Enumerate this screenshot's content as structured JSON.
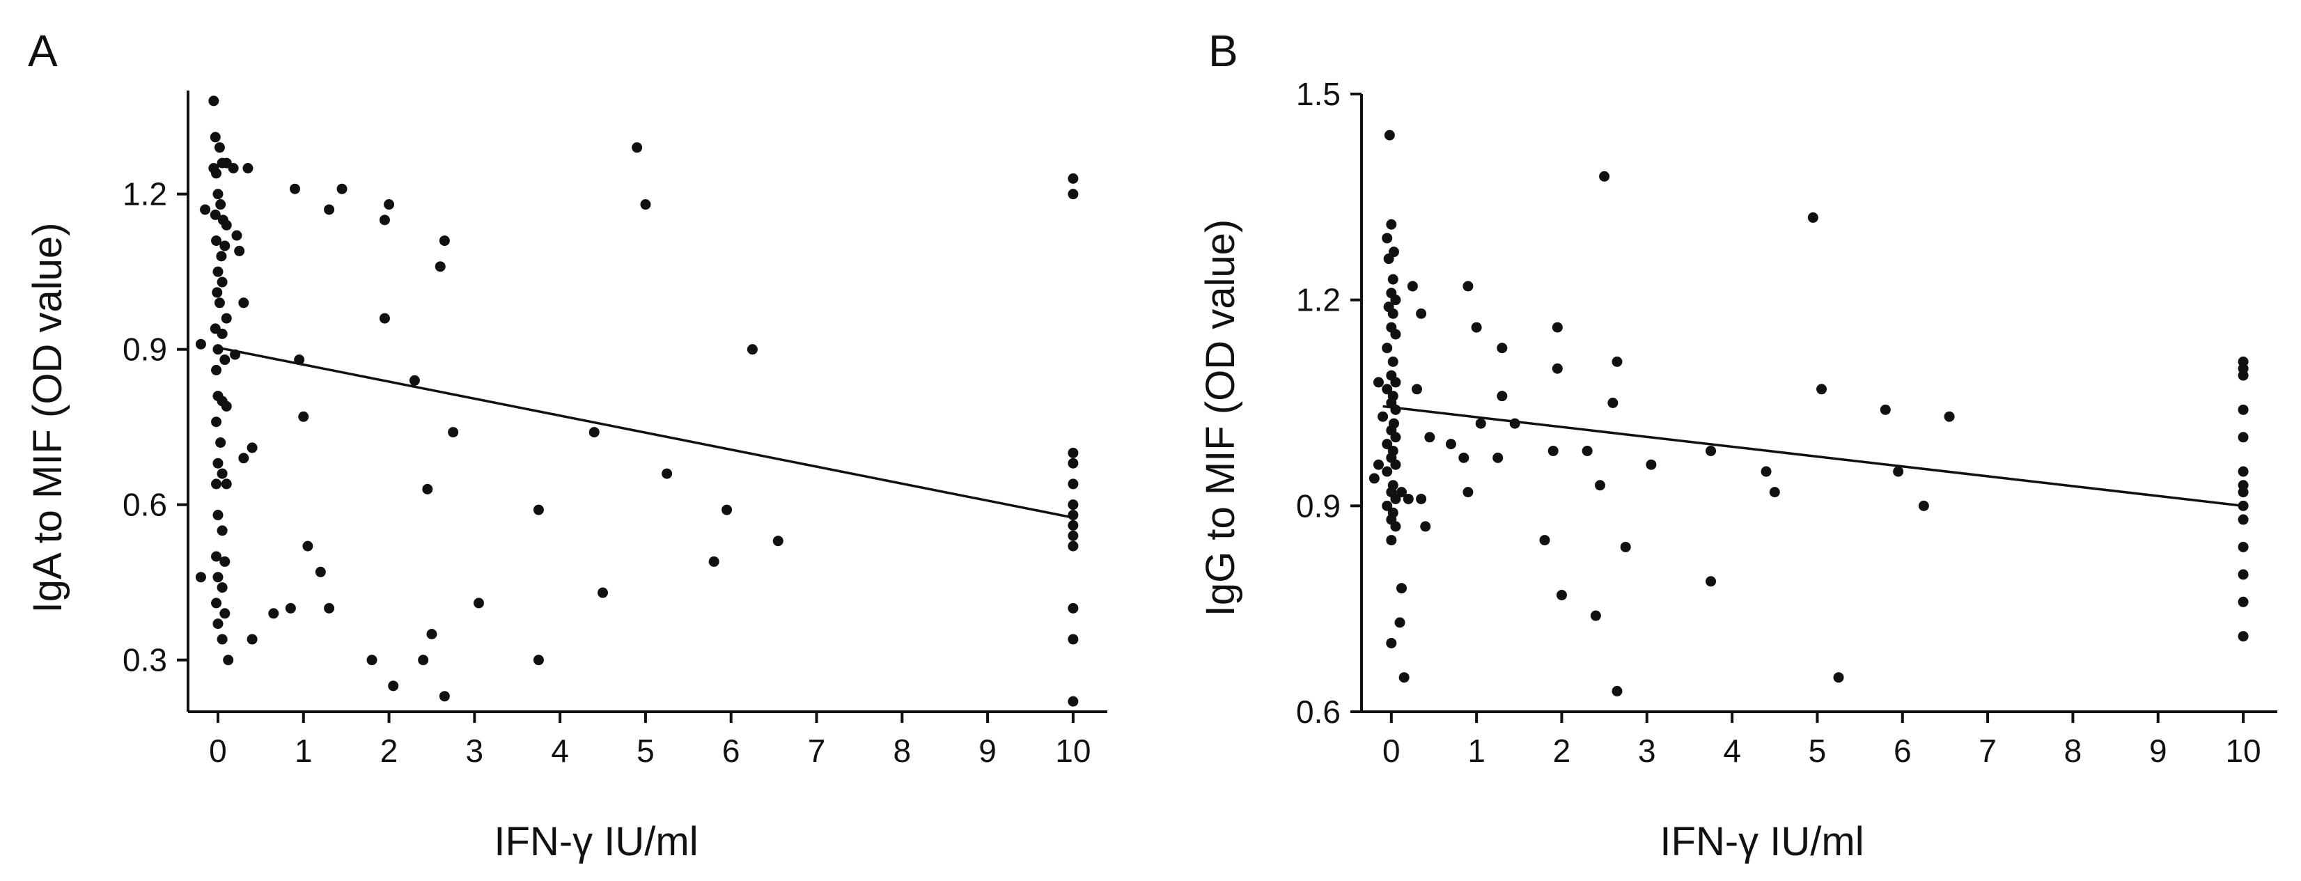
{
  "figure": {
    "colors": {
      "ink": "#111111",
      "background": "#ffffff"
    }
  },
  "chart_data": [
    {
      "type": "scatter",
      "panel": "A",
      "title": "",
      "xlabel": "IFN-γ IU/ml",
      "ylabel": "IgA to MIF (OD value)",
      "xlim": [
        -0.35,
        10.4
      ],
      "ylim": [
        0.2,
        1.4
      ],
      "xticks": [
        0,
        1,
        2,
        3,
        4,
        5,
        6,
        7,
        8,
        9,
        10
      ],
      "xtick_labels": [
        "0",
        "1",
        "2",
        "3",
        "4",
        "5",
        "6",
        "7",
        "8",
        "9",
        "10"
      ],
      "yticks": [
        0.3,
        0.6,
        0.9,
        1.2
      ],
      "ytick_labels": [
        "0.3",
        "0.6",
        "0.9",
        "1.2"
      ],
      "trend_line": {
        "x": [
          -0.05,
          10
        ],
        "y": [
          0.905,
          0.575
        ]
      },
      "points": [
        [
          -0.2,
          0.91
        ],
        [
          -0.15,
          1.17
        ],
        [
          -0.05,
          1.38
        ],
        [
          -0.03,
          1.31
        ],
        [
          0.02,
          1.29
        ],
        [
          -0.05,
          1.25
        ],
        [
          0.05,
          1.26
        ],
        [
          0.1,
          1.26
        ],
        [
          -0.02,
          1.24
        ],
        [
          0.0,
          1.2
        ],
        [
          0.03,
          1.18
        ],
        [
          -0.03,
          1.16
        ],
        [
          0.06,
          1.15
        ],
        [
          0.1,
          1.14
        ],
        [
          -0.02,
          1.11
        ],
        [
          0.04,
          1.08
        ],
        [
          0.08,
          1.1
        ],
        [
          0.0,
          1.05
        ],
        [
          0.05,
          1.03
        ],
        [
          -0.01,
          1.01
        ],
        [
          0.02,
          0.99
        ],
        [
          0.1,
          0.96
        ],
        [
          -0.03,
          0.94
        ],
        [
          0.05,
          0.93
        ],
        [
          0.0,
          0.9
        ],
        [
          0.08,
          0.88
        ],
        [
          -0.02,
          0.86
        ],
        [
          0.0,
          0.81
        ],
        [
          0.05,
          0.8
        ],
        [
          0.1,
          0.79
        ],
        [
          -0.02,
          0.76
        ],
        [
          0.03,
          0.72
        ],
        [
          0.0,
          0.68
        ],
        [
          0.05,
          0.66
        ],
        [
          -0.02,
          0.64
        ],
        [
          0.1,
          0.64
        ],
        [
          0.0,
          0.58
        ],
        [
          0.05,
          0.55
        ],
        [
          -0.02,
          0.5
        ],
        [
          0.08,
          0.49
        ],
        [
          0.0,
          0.46
        ],
        [
          0.05,
          0.44
        ],
        [
          -0.02,
          0.41
        ],
        [
          0.08,
          0.39
        ],
        [
          -0.2,
          0.46
        ],
        [
          0.0,
          0.37
        ],
        [
          0.05,
          0.34
        ],
        [
          0.12,
          0.3
        ],
        [
          0.18,
          1.25
        ],
        [
          0.22,
          1.12
        ],
        [
          0.25,
          1.09
        ],
        [
          0.3,
          0.99
        ],
        [
          0.35,
          1.25
        ],
        [
          0.2,
          0.89
        ],
        [
          0.3,
          0.69
        ],
        [
          0.4,
          0.71
        ],
        [
          0.4,
          0.34
        ],
        [
          0.65,
          0.39
        ],
        [
          0.85,
          0.4
        ],
        [
          0.95,
          0.88
        ],
        [
          1.0,
          0.77
        ],
        [
          1.05,
          0.52
        ],
        [
          1.2,
          0.47
        ],
        [
          1.3,
          0.4
        ],
        [
          0.9,
          1.21
        ],
        [
          1.3,
          1.17
        ],
        [
          1.45,
          1.21
        ],
        [
          1.8,
          0.3
        ],
        [
          1.95,
          1.15
        ],
        [
          1.95,
          0.96
        ],
        [
          2.0,
          1.18
        ],
        [
          2.05,
          0.25
        ],
        [
          2.3,
          0.84
        ],
        [
          2.4,
          0.3
        ],
        [
          2.45,
          0.63
        ],
        [
          2.5,
          0.35
        ],
        [
          2.6,
          1.06
        ],
        [
          2.65,
          1.11
        ],
        [
          2.65,
          0.23
        ],
        [
          2.75,
          0.74
        ],
        [
          3.05,
          0.41
        ],
        [
          3.75,
          0.59
        ],
        [
          3.75,
          0.3
        ],
        [
          4.4,
          0.74
        ],
        [
          4.5,
          0.43
        ],
        [
          4.9,
          1.29
        ],
        [
          5.0,
          1.18
        ],
        [
          5.25,
          0.66
        ],
        [
          5.8,
          0.49
        ],
        [
          5.95,
          0.59
        ],
        [
          6.25,
          0.9
        ],
        [
          6.55,
          0.53
        ],
        [
          10.0,
          1.23
        ],
        [
          10.0,
          1.2
        ],
        [
          10.0,
          0.7
        ],
        [
          10.0,
          0.68
        ],
        [
          10.0,
          0.64
        ],
        [
          10.0,
          0.6
        ],
        [
          10.0,
          0.58
        ],
        [
          10.0,
          0.56
        ],
        [
          10.0,
          0.54
        ],
        [
          10.0,
          0.52
        ],
        [
          10.0,
          0.4
        ],
        [
          10.0,
          0.34
        ],
        [
          10.0,
          0.22
        ]
      ]
    },
    {
      "type": "scatter",
      "panel": "B",
      "title": "",
      "xlabel": "IFN-γ IU/ml",
      "ylabel": "IgG to MIF (OD value)",
      "xlim": [
        -0.35,
        10.4
      ],
      "ylim": [
        0.6,
        1.5
      ],
      "xticks": [
        0,
        1,
        2,
        3,
        4,
        5,
        6,
        7,
        8,
        9,
        10
      ],
      "xtick_labels": [
        "0",
        "1",
        "2",
        "3",
        "4",
        "5",
        "6",
        "7",
        "8",
        "9",
        "10"
      ],
      "yticks": [
        0.6,
        0.9,
        1.2,
        1.5
      ],
      "ytick_labels": [
        "0.6",
        "0.9",
        "1.2",
        "1.5"
      ],
      "trend_line": {
        "x": [
          -0.1,
          10
        ],
        "y": [
          1.045,
          0.9
        ]
      },
      "points": [
        [
          -0.02,
          1.44
        ],
        [
          -0.05,
          1.29
        ],
        [
          0.0,
          1.31
        ],
        [
          0.03,
          1.27
        ],
        [
          -0.03,
          1.26
        ],
        [
          0.02,
          1.23
        ],
        [
          0.0,
          1.21
        ],
        [
          0.05,
          1.2
        ],
        [
          -0.03,
          1.19
        ],
        [
          0.02,
          1.18
        ],
        [
          0.0,
          1.16
        ],
        [
          0.05,
          1.15
        ],
        [
          -0.05,
          1.13
        ],
        [
          0.02,
          1.11
        ],
        [
          0.0,
          1.09
        ],
        [
          0.05,
          1.08
        ],
        [
          -0.05,
          1.07
        ],
        [
          0.02,
          1.06
        ],
        [
          0.0,
          1.05
        ],
        [
          0.05,
          1.04
        ],
        [
          -0.15,
          1.08
        ],
        [
          -0.1,
          1.03
        ],
        [
          0.03,
          1.02
        ],
        [
          0.0,
          1.01
        ],
        [
          0.05,
          1.0
        ],
        [
          -0.05,
          0.99
        ],
        [
          0.02,
          0.98
        ],
        [
          0.0,
          0.97
        ],
        [
          0.05,
          0.96
        ],
        [
          -0.05,
          0.95
        ],
        [
          0.02,
          0.93
        ],
        [
          0.0,
          0.92
        ],
        [
          0.05,
          0.91
        ],
        [
          -0.05,
          0.9
        ],
        [
          0.02,
          0.89
        ],
        [
          0.0,
          0.88
        ],
        [
          0.05,
          0.87
        ],
        [
          0.0,
          0.85
        ],
        [
          -0.2,
          0.94
        ],
        [
          -0.15,
          0.96
        ],
        [
          0.0,
          0.7
        ],
        [
          0.1,
          0.73
        ],
        [
          0.12,
          0.78
        ],
        [
          0.15,
          0.65
        ],
        [
          0.12,
          0.92
        ],
        [
          0.2,
          0.91
        ],
        [
          0.25,
          1.22
        ],
        [
          0.3,
          1.07
        ],
        [
          0.35,
          1.18
        ],
        [
          0.35,
          0.91
        ],
        [
          0.4,
          0.87
        ],
        [
          0.45,
          1.0
        ],
        [
          0.7,
          0.99
        ],
        [
          0.85,
          0.97
        ],
        [
          0.9,
          1.22
        ],
        [
          0.9,
          0.92
        ],
        [
          1.0,
          1.16
        ],
        [
          1.05,
          1.02
        ],
        [
          1.25,
          0.97
        ],
        [
          1.3,
          1.13
        ],
        [
          1.3,
          1.06
        ],
        [
          1.45,
          1.02
        ],
        [
          1.8,
          0.85
        ],
        [
          1.9,
          0.98
        ],
        [
          1.95,
          1.16
        ],
        [
          1.95,
          1.1
        ],
        [
          2.0,
          0.77
        ],
        [
          2.3,
          0.98
        ],
        [
          2.4,
          0.74
        ],
        [
          2.45,
          0.93
        ],
        [
          2.5,
          1.38
        ],
        [
          2.6,
          1.05
        ],
        [
          2.65,
          1.11
        ],
        [
          2.65,
          0.63
        ],
        [
          2.75,
          0.84
        ],
        [
          3.05,
          0.96
        ],
        [
          3.75,
          0.98
        ],
        [
          3.75,
          0.79
        ],
        [
          4.4,
          0.95
        ],
        [
          4.5,
          0.92
        ],
        [
          4.95,
          1.32
        ],
        [
          5.05,
          1.07
        ],
        [
          5.25,
          0.65
        ],
        [
          5.8,
          1.04
        ],
        [
          5.95,
          0.95
        ],
        [
          6.25,
          0.9
        ],
        [
          6.55,
          1.03
        ],
        [
          10.0,
          1.11
        ],
        [
          10.0,
          1.1
        ],
        [
          10.0,
          1.09
        ],
        [
          10.0,
          1.04
        ],
        [
          10.0,
          1.0
        ],
        [
          10.0,
          0.95
        ],
        [
          10.0,
          0.93
        ],
        [
          10.0,
          0.92
        ],
        [
          10.0,
          0.9
        ],
        [
          10.0,
          0.88
        ],
        [
          10.0,
          0.84
        ],
        [
          10.0,
          0.8
        ],
        [
          10.0,
          0.76
        ],
        [
          10.0,
          0.71
        ]
      ]
    }
  ]
}
